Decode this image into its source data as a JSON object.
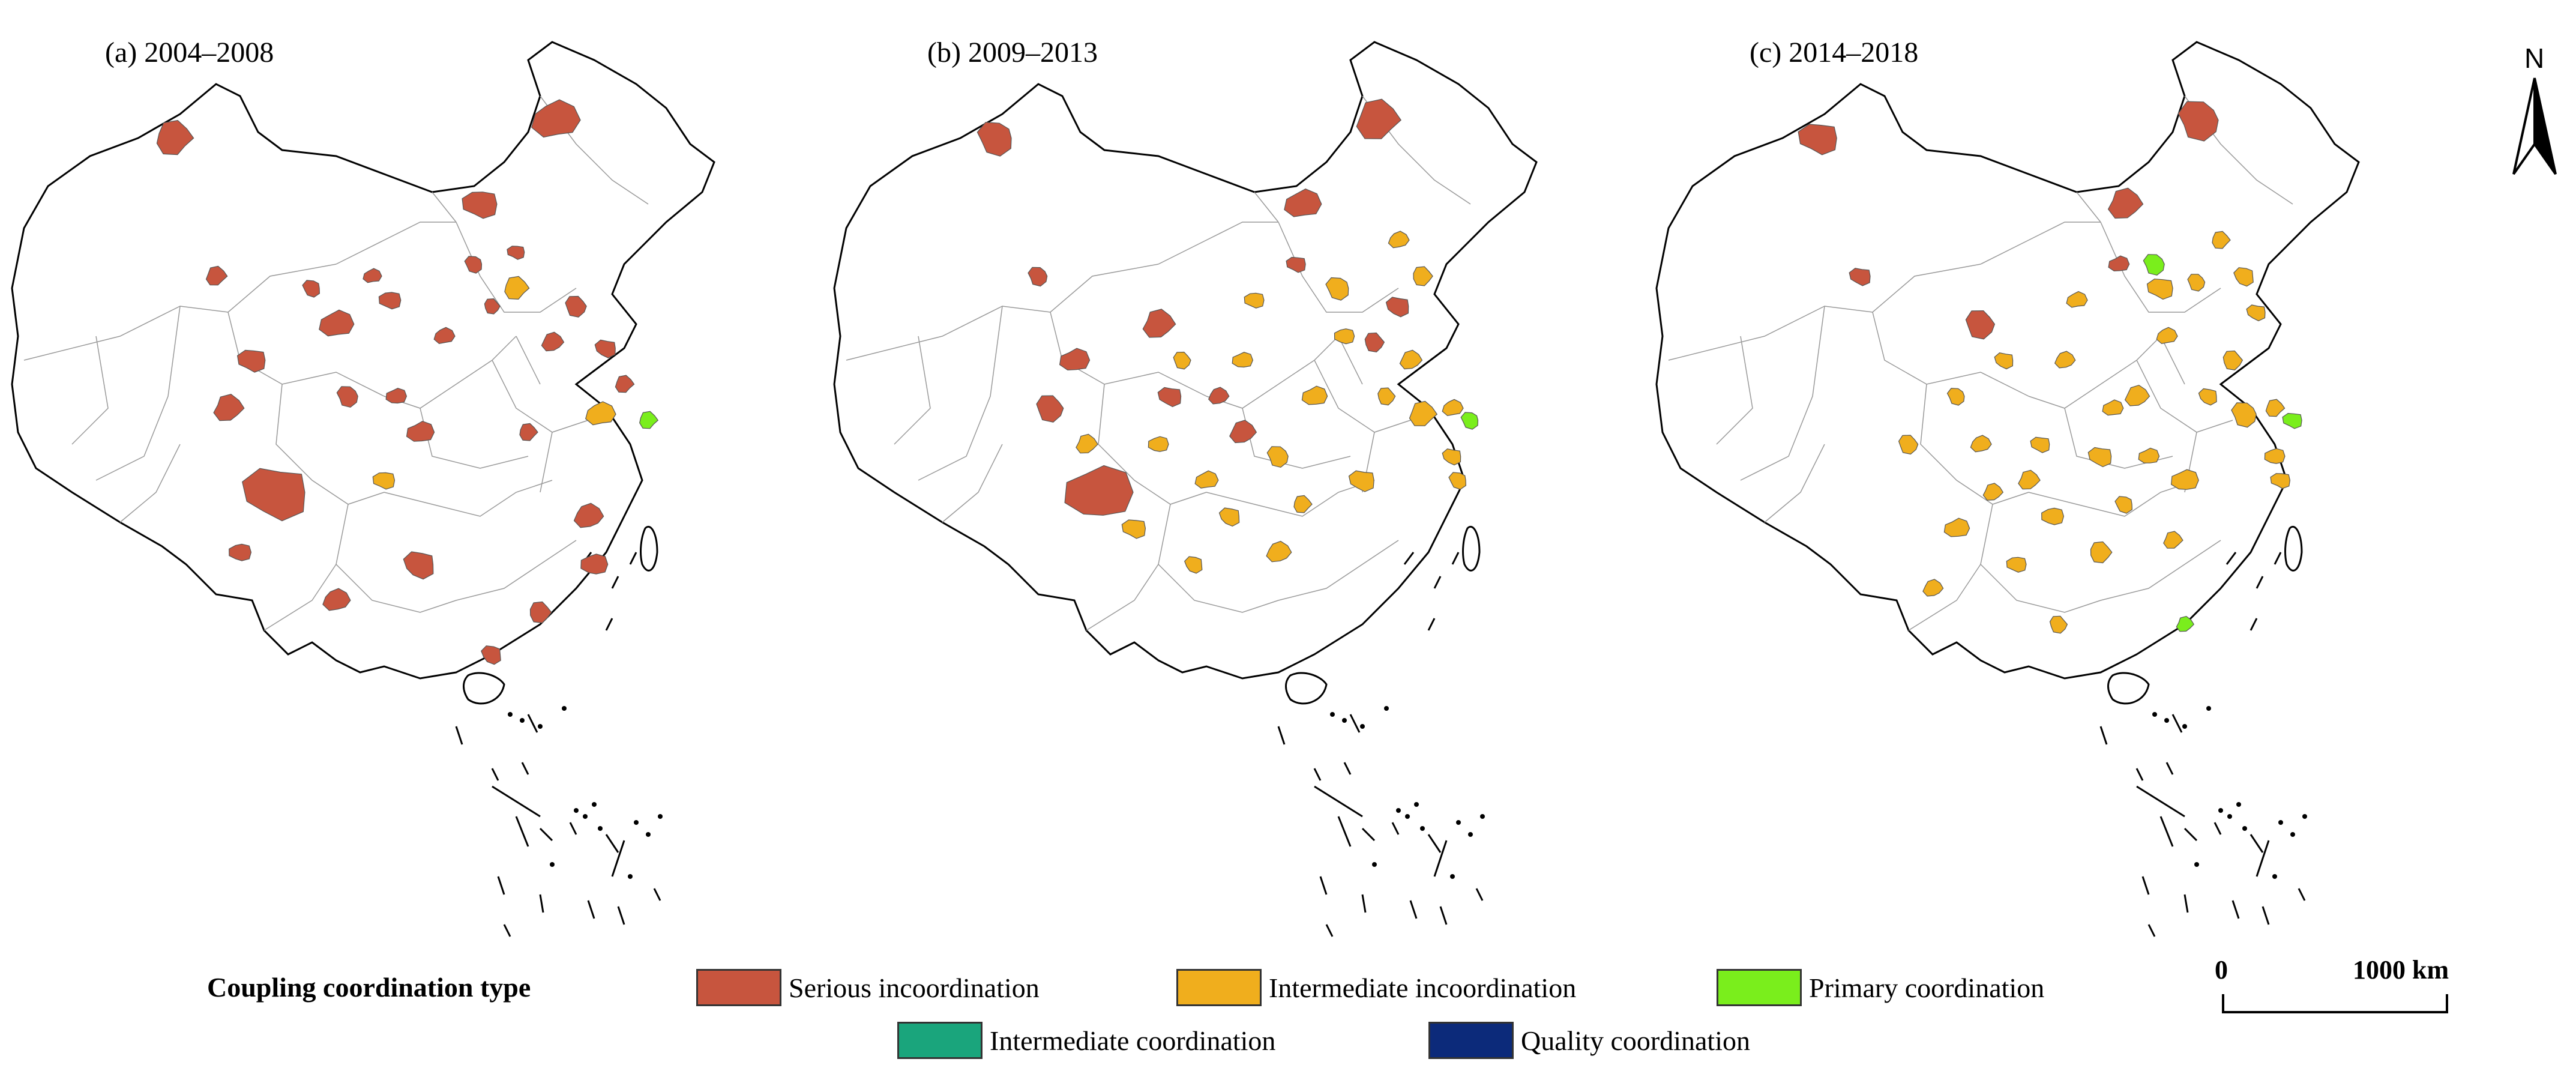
{
  "panels": [
    {
      "title": "(a) 2004–2008"
    },
    {
      "title": "(b) 2009–2013"
    },
    {
      "title": "(c) 2014–2018"
    }
  ],
  "north_arrow": {
    "label": "N"
  },
  "legend": {
    "title": "Coupling coordination type",
    "items": [
      {
        "label": "Serious incoordination",
        "color": "#c7553e"
      },
      {
        "label": "Intermediate incoordination",
        "color": "#f0ae1d"
      },
      {
        "label": "Primary coordination",
        "color": "#7aee1c"
      },
      {
        "label": "Intermediate coordination",
        "color": "#1aa57c"
      },
      {
        "label": "Quality coordination",
        "color": "#0c2a7a"
      }
    ]
  },
  "scale_bar": {
    "start_label": "0",
    "end_label": "1000 km"
  },
  "map_data": [
    {
      "serious": 30,
      "intermediate_incoord": 3,
      "primary": 1
    },
    {
      "serious": 14,
      "intermediate_incoord": 24,
      "primary": 1
    },
    {
      "serious": 6,
      "intermediate_incoord": 34,
      "primary": 3
    }
  ]
}
